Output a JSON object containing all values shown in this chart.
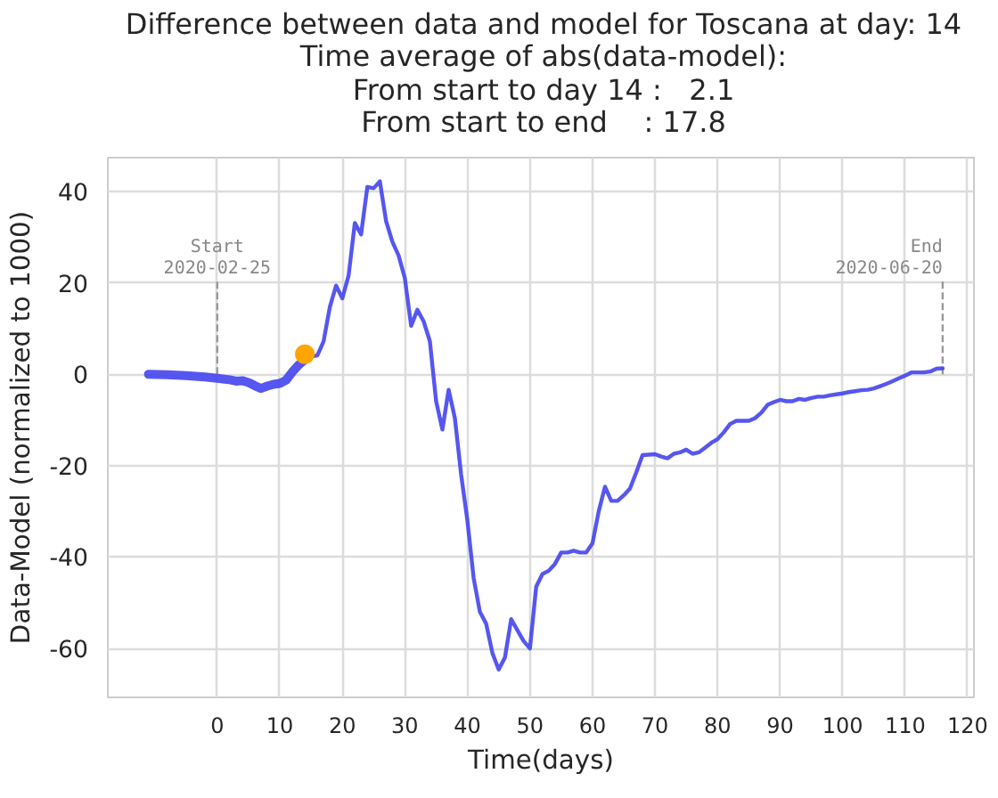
{
  "chart_data": {
    "type": "line",
    "title": "Difference between data and model for Toscana at day: 14\nTime average of abs(data-model):\nFrom start to day 14 :   2.1\nFrom start to end    : 17.8",
    "xlabel": "Time(days)",
    "ylabel": "Data-Model (normalized to 1000)",
    "xlim": [
      -17.5,
      121
    ],
    "ylim": [
      -70.7,
      47.4
    ],
    "xticks": [
      0,
      10,
      20,
      30,
      40,
      50,
      60,
      70,
      80,
      90,
      100,
      110,
      120
    ],
    "yticks": [
      -60,
      -40,
      -20,
      0,
      20,
      40
    ],
    "grid": true,
    "series": [
      {
        "color": "#4444ee",
        "x": [
          -11,
          -8,
          -5,
          -2,
          0,
          2,
          3,
          4,
          5,
          6,
          7,
          8,
          9,
          10,
          11,
          12,
          13,
          14
        ],
        "values": [
          0,
          -0.1,
          -0.3,
          -0.6,
          -0.9,
          -1.2,
          -1.5,
          -1.4,
          -1.8,
          -2.5,
          -3.1,
          -2.6,
          -2.2,
          -2.0,
          -1.3,
          0.5,
          2.0,
          3.2
        ]
      },
      {
        "color": "#4444ee",
        "x": [
          14,
          15,
          16,
          17,
          18,
          19,
          20,
          21,
          22,
          23,
          24,
          25,
          26,
          27,
          28,
          29,
          30,
          31,
          32,
          33,
          34,
          35,
          36,
          37,
          38,
          39,
          40,
          41,
          42,
          43,
          44,
          45,
          46,
          47,
          48,
          49,
          50,
          51,
          52,
          53,
          54,
          55,
          56,
          57,
          58,
          59,
          60,
          61,
          62,
          63,
          64,
          65,
          66,
          67,
          68,
          69,
          70,
          71,
          72,
          73,
          74,
          75,
          76,
          77,
          78,
          79,
          80,
          81,
          82,
          83,
          84,
          85,
          86,
          87,
          88,
          89,
          90,
          91,
          92,
          93,
          94,
          95,
          96,
          97,
          98,
          99,
          100,
          101,
          102,
          103,
          104,
          105,
          106,
          107,
          108,
          109,
          110,
          111,
          112,
          113,
          114,
          115,
          116
        ],
        "values": [
          3.2,
          3.9,
          4.1,
          7.2,
          14.7,
          19.4,
          16.6,
          21.6,
          33.1,
          30.6,
          41,
          40.7,
          42.2,
          33.5,
          29,
          26,
          21,
          10.6,
          14.1,
          11.6,
          7.2,
          -5.9,
          -12.1,
          -3.4,
          -9.6,
          -22,
          -32,
          -44.6,
          -52,
          -54.6,
          -61,
          -64.6,
          -62,
          -53.6,
          -56,
          -58.4,
          -60,
          -46.5,
          -43.7,
          -43,
          -41.5,
          -39,
          -39,
          -38.6,
          -39,
          -39,
          -37,
          -30,
          -24.6,
          -27.7,
          -27.7,
          -26.5,
          -25,
          -21.5,
          -17.7,
          -17.6,
          -17.5,
          -18,
          -18.4,
          -17.4,
          -17.1,
          -16.5,
          -17.4,
          -17.1,
          -16.1,
          -15,
          -14.2,
          -12.7,
          -10.9,
          -10.2,
          -10.2,
          -10.2,
          -9.6,
          -8.4,
          -6.7,
          -6.1,
          -5.6,
          -5.9,
          -5.9,
          -5.4,
          -5.6,
          -5.2,
          -4.9,
          -4.9,
          -4.6,
          -4.4,
          -4.2,
          -3.9,
          -3.7,
          -3.5,
          -3.4,
          -3.1,
          -2.6,
          -2.1,
          -1.5,
          -0.9,
          -0.3,
          0.4,
          0.4,
          0.4,
          0.6,
          1.2,
          1.3
        ]
      },
      {
        "type": "scatter",
        "color": "#ffa500",
        "x": [
          14
        ],
        "values": [
          4.4
        ]
      }
    ],
    "ref_lines": [
      {
        "axis": "x",
        "value": 0,
        "label": "Start\n2020-02-25",
        "color": "#999999",
        "line_style": "dashed"
      },
      {
        "axis": "x",
        "value": 116,
        "label": "End\n2020-06-20",
        "color": "#999999",
        "line_style": "dashed"
      }
    ]
  }
}
